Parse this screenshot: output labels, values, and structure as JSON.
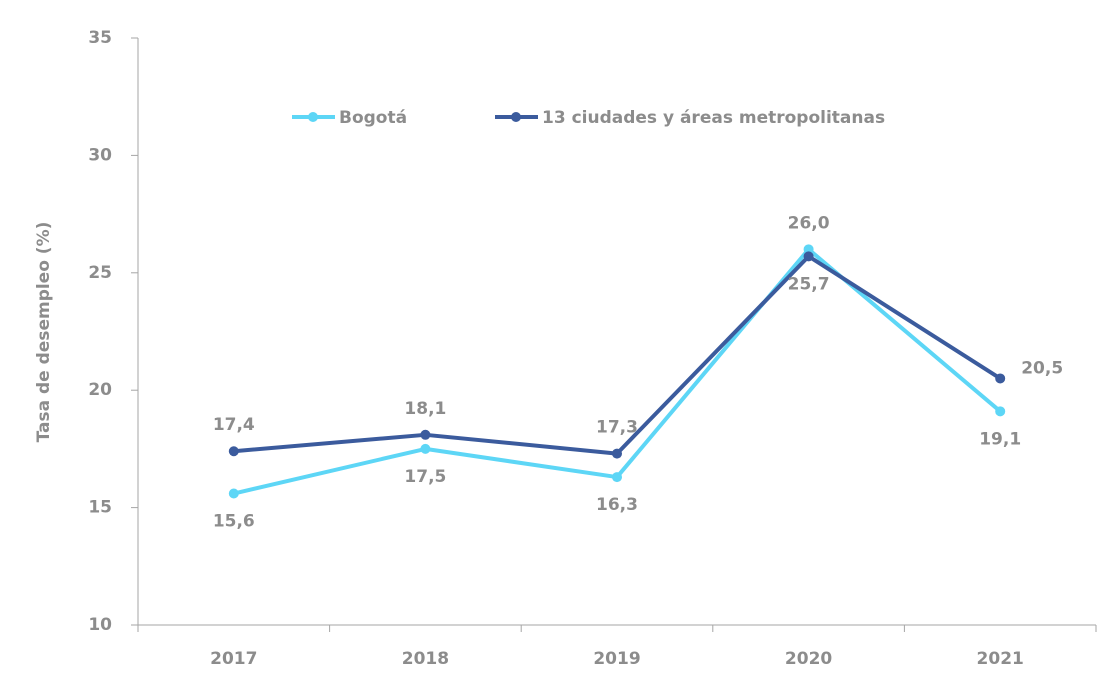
{
  "chart_data": {
    "type": "line",
    "y_label": "Tasa de desempleo (%)",
    "categories": [
      "2017",
      "2018",
      "2019",
      "2020",
      "2021"
    ],
    "series": [
      {
        "name": "Bogotá",
        "color": "#5dd6f6",
        "values": [
          15.6,
          17.5,
          16.3,
          26.0,
          19.1
        ],
        "value_labels": [
          "15,6",
          "17,5",
          "16,3",
          "26,0",
          "19,1"
        ]
      },
      {
        "name": "13 ciudades y áreas metropolitanas",
        "color": "#3b5b9d",
        "values": [
          17.4,
          18.1,
          17.3,
          25.7,
          20.5
        ],
        "value_labels": [
          "17,4",
          "18,1",
          "17,3",
          "25,7",
          "20,5"
        ]
      }
    ],
    "ylim": [
      10,
      35
    ],
    "yticks": [
      10,
      15,
      20,
      25,
      30,
      35
    ],
    "grid": false,
    "legend": "top"
  }
}
